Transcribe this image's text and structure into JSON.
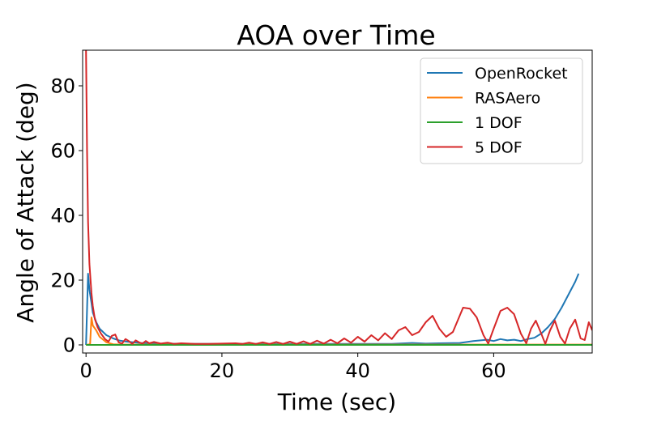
{
  "chart_data": {
    "type": "line",
    "title": "AOA over Time",
    "xlabel": "Time (sec)",
    "ylabel": "Angle of Attack (deg)",
    "xlim": [
      -0.5,
      74.5
    ],
    "ylim": [
      -2.5,
      91
    ],
    "xticks": [
      0,
      20,
      40,
      60
    ],
    "yticks": [
      0,
      20,
      40,
      60,
      80
    ],
    "grid": false,
    "legend_position": "top-right",
    "series": [
      {
        "name": "OpenRocket",
        "color": "#1f77b4",
        "points": [
          [
            0,
            0
          ],
          [
            0.3,
            22
          ],
          [
            0.5,
            17
          ],
          [
            0.8,
            13
          ],
          [
            1.0,
            10
          ],
          [
            1.5,
            7
          ],
          [
            2,
            5
          ],
          [
            3,
            3
          ],
          [
            4,
            2
          ],
          [
            5,
            1.3
          ],
          [
            6,
            1
          ],
          [
            8,
            0.6
          ],
          [
            10,
            0.4
          ],
          [
            15,
            0.3
          ],
          [
            20,
            0.3
          ],
          [
            30,
            0.3
          ],
          [
            40,
            0.3
          ],
          [
            45,
            0.3
          ],
          [
            48,
            0.6
          ],
          [
            50,
            0.4
          ],
          [
            52,
            0.5
          ],
          [
            55,
            0.6
          ],
          [
            57,
            1.2
          ],
          [
            59,
            1.6
          ],
          [
            60,
            1.2
          ],
          [
            61,
            1.8
          ],
          [
            62,
            1.4
          ],
          [
            63,
            1.6
          ],
          [
            64,
            1.2
          ],
          [
            65,
            1.8
          ],
          [
            66,
            2.2
          ],
          [
            67,
            3.5
          ],
          [
            68,
            5.5
          ],
          [
            69,
            8
          ],
          [
            70,
            11.5
          ],
          [
            71,
            15.5
          ],
          [
            72,
            19.5
          ],
          [
            72.5,
            22
          ]
        ]
      },
      {
        "name": "RASAero",
        "color": "#ff7f0e",
        "points": [
          [
            0,
            0
          ],
          [
            0.6,
            0.2
          ],
          [
            0.8,
            8.5
          ],
          [
            1.0,
            6
          ],
          [
            1.5,
            4.5
          ],
          [
            2,
            2.5
          ],
          [
            3,
            0.8
          ],
          [
            4,
            0.2
          ],
          [
            5,
            0.1
          ],
          [
            74.5,
            0.1
          ]
        ]
      },
      {
        "name": "1 DOF",
        "color": "#2ca02c",
        "points": [
          [
            0,
            0
          ],
          [
            74.5,
            0
          ]
        ]
      },
      {
        "name": "5 DOF",
        "color": "#d62728",
        "points": [
          [
            0,
            91
          ],
          [
            0.15,
            60
          ],
          [
            0.3,
            38
          ],
          [
            0.5,
            25
          ],
          [
            0.8,
            16
          ],
          [
            1.0,
            12
          ],
          [
            1.3,
            8
          ],
          [
            1.7,
            5.5
          ],
          [
            2.2,
            3.5
          ],
          [
            2.8,
            1.8
          ],
          [
            3.3,
            1
          ],
          [
            3.8,
            2.8
          ],
          [
            4.3,
            3.2
          ],
          [
            4.8,
            0.8
          ],
          [
            5.3,
            0.4
          ],
          [
            5.8,
            1.8
          ],
          [
            6.3,
            1.2
          ],
          [
            6.8,
            0.3
          ],
          [
            7.3,
            1.4
          ],
          [
            7.8,
            0.8
          ],
          [
            8.3,
            0.4
          ],
          [
            8.8,
            1.2
          ],
          [
            9.3,
            0.5
          ],
          [
            10,
            0.9
          ],
          [
            11,
            0.4
          ],
          [
            12,
            0.7
          ],
          [
            13,
            0.3
          ],
          [
            14,
            0.5
          ],
          [
            16,
            0.3
          ],
          [
            18,
            0.3
          ],
          [
            20,
            0.4
          ],
          [
            22,
            0.5
          ],
          [
            23,
            0.3
          ],
          [
            24,
            0.7
          ],
          [
            25,
            0.3
          ],
          [
            26,
            0.8
          ],
          [
            27,
            0.3
          ],
          [
            28,
            0.9
          ],
          [
            29,
            0.3
          ],
          [
            30,
            1.0
          ],
          [
            31,
            0.3
          ],
          [
            32,
            1.1
          ],
          [
            33,
            0.3
          ],
          [
            34,
            1.3
          ],
          [
            35,
            0.4
          ],
          [
            36,
            1.6
          ],
          [
            37,
            0.5
          ],
          [
            38,
            2.0
          ],
          [
            39,
            0.7
          ],
          [
            40,
            2.5
          ],
          [
            41,
            1.0
          ],
          [
            42,
            3.0
          ],
          [
            43,
            1.4
          ],
          [
            44,
            3.6
          ],
          [
            45,
            1.8
          ],
          [
            46,
            4.5
          ],
          [
            47,
            5.5
          ],
          [
            48,
            3.0
          ],
          [
            49,
            4.0
          ],
          [
            50,
            7.0
          ],
          [
            51,
            9.0
          ],
          [
            52,
            5.0
          ],
          [
            53,
            2.5
          ],
          [
            54,
            4.0
          ],
          [
            55,
            9.0
          ],
          [
            55.5,
            11.5
          ],
          [
            56.5,
            11.2
          ],
          [
            57.5,
            8.5
          ],
          [
            58.5,
            3.0
          ],
          [
            59.2,
            0.4
          ],
          [
            60,
            5.0
          ],
          [
            61,
            10.5
          ],
          [
            62,
            11.5
          ],
          [
            63,
            9.5
          ],
          [
            64,
            3.5
          ],
          [
            64.8,
            0.5
          ],
          [
            65.5,
            5.0
          ],
          [
            66.2,
            7.5
          ],
          [
            67.0,
            3.5
          ],
          [
            67.6,
            0.3
          ],
          [
            68.3,
            4.5
          ],
          [
            69,
            7.5
          ],
          [
            69.8,
            2.5
          ],
          [
            70.5,
            0.4
          ],
          [
            71.2,
            5.0
          ],
          [
            72,
            7.8
          ],
          [
            72.8,
            2.0
          ],
          [
            73.4,
            1.5
          ],
          [
            74,
            7.0
          ],
          [
            74.5,
            4.5
          ]
        ]
      }
    ]
  }
}
